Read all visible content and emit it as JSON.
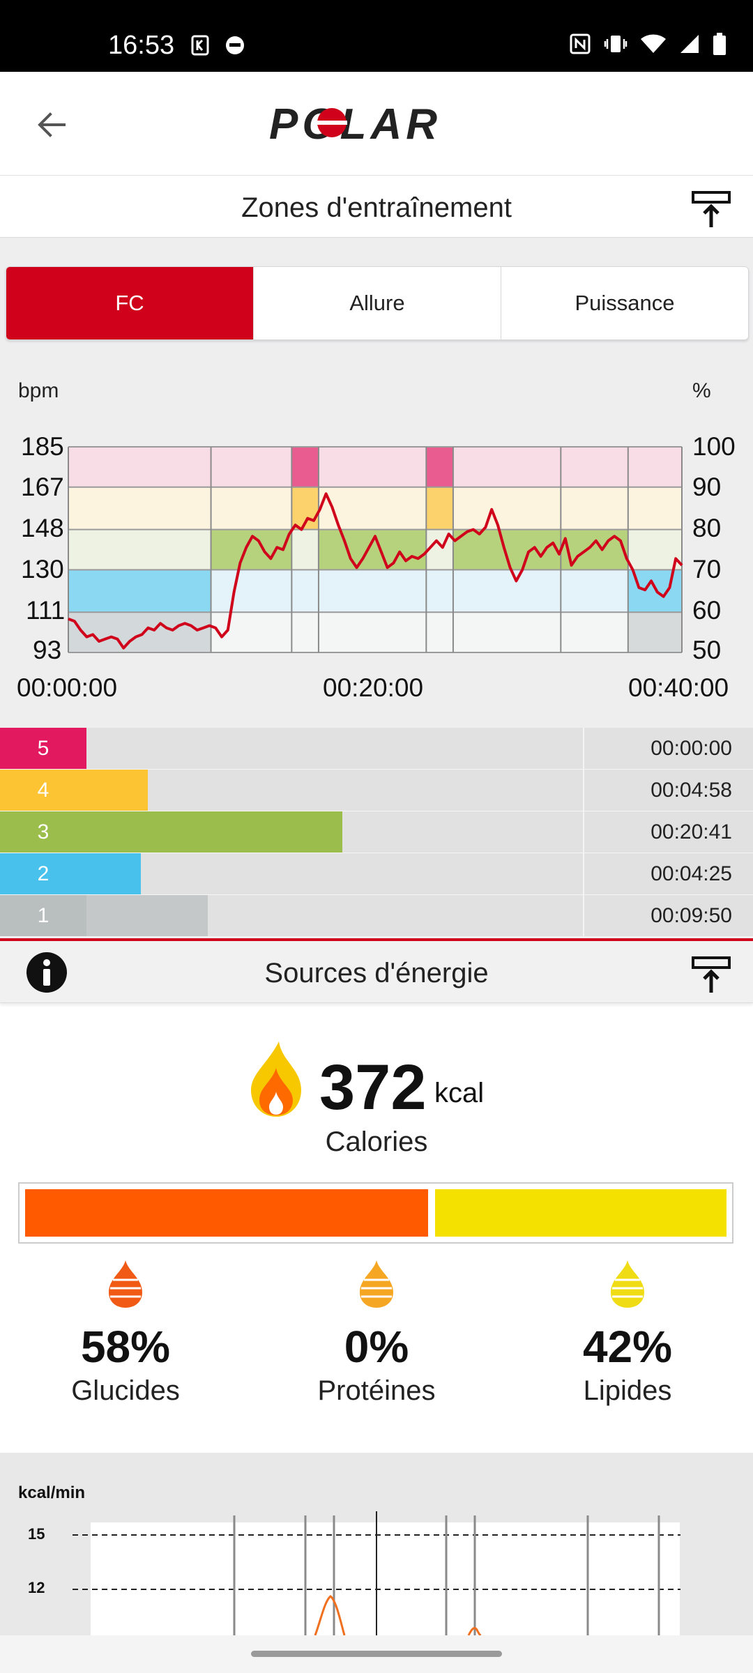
{
  "status_bar": {
    "time": "16:53"
  },
  "app_bar": {
    "logo_text": "POLAR"
  },
  "training_zones": {
    "title": "Zones d'entraînement",
    "tabs": [
      {
        "label": "FC",
        "active": true
      },
      {
        "label": "Allure",
        "active": false
      },
      {
        "label": "Puissance",
        "active": false
      }
    ],
    "unit_left": "bpm",
    "unit_right": "%",
    "y_left_ticks": [
      "185",
      "167",
      "148",
      "130",
      "111",
      "93"
    ],
    "y_right_ticks": [
      "100",
      "90",
      "80",
      "70",
      "60",
      "50"
    ],
    "x_ticks": [
      "00:00:00",
      "00:20:00",
      "00:40:00"
    ],
    "zones": [
      {
        "num": "5",
        "time": "00:00:00",
        "fraction": 0.0,
        "color": "#e3195f",
        "fill_color": "#e3195f"
      },
      {
        "num": "4",
        "time": "00:04:58",
        "fraction": 0.124,
        "color": "#fcc333",
        "fill_color": "#fcc333"
      },
      {
        "num": "3",
        "time": "00:20:41",
        "fraction": 0.516,
        "color": "#9bbd4c",
        "fill_color": "#9bbd4c"
      },
      {
        "num": "2",
        "time": "00:04:25",
        "fraction": 0.11,
        "color": "#48c2ed",
        "fill_color": "#48c2ed"
      },
      {
        "num": "1",
        "time": "00:09:50",
        "fraction": 0.245,
        "color": "#b9bebf",
        "fill_color": "#c4c8c9"
      }
    ]
  },
  "energy_sources": {
    "title": "Sources d'énergie",
    "calories_value": "372",
    "calories_unit": "kcal",
    "calories_label": "Calories",
    "bar": [
      {
        "name": "Glucides",
        "fraction": 0.58,
        "color": "#ff5a00"
      },
      {
        "name": "Lipides",
        "fraction": 0.42,
        "color": "#f5e100"
      }
    ],
    "sources": [
      {
        "pct": "58%",
        "name": "Glucides",
        "color": "#f05a14"
      },
      {
        "pct": "0%",
        "name": "Protéines",
        "color": "#f5a623"
      },
      {
        "pct": "42%",
        "name": "Lipides",
        "color": "#f0dc14"
      }
    ],
    "kcal_chart": {
      "unit": "kcal/min",
      "y_ticks": [
        "15",
        "12"
      ]
    }
  },
  "chart_data": [
    {
      "type": "line",
      "title": "",
      "ylabel": "bpm",
      "y2label": "%",
      "xlabel": "",
      "x_unit": "minutes",
      "ylim": [
        93,
        185
      ],
      "xlim": [
        0,
        40
      ],
      "x_ticks": [
        "00:00:00",
        "00:20:00",
        "00:40:00"
      ],
      "zone_bands_bpm": [
        [
          93,
          111
        ],
        [
          111,
          130
        ],
        [
          130,
          148
        ],
        [
          148,
          167
        ],
        [
          167,
          185
        ]
      ],
      "series": [
        {
          "x": [
            0,
            0.4,
            0.8,
            1.2,
            1.6,
            2.0,
            2.4,
            2.8,
            3.2,
            3.6,
            4.0,
            4.4,
            4.8,
            5.2,
            5.6,
            6.0,
            6.4,
            6.8,
            7.2,
            7.6,
            8.0,
            8.4,
            8.8,
            9.2,
            9.6,
            10.0,
            10.4,
            10.8,
            11.2,
            11.6,
            12.0,
            12.4,
            12.8,
            13.2,
            13.6,
            14.0,
            14.4,
            14.8,
            15.2,
            15.6,
            16.0,
            16.4,
            16.8,
            17.2,
            17.6,
            18.0,
            18.4,
            18.8,
            19.2,
            19.6,
            20.0,
            20.4,
            20.8,
            21.2,
            21.6,
            22.0,
            22.4,
            22.8,
            23.2,
            23.6,
            24.0,
            24.4,
            24.8,
            25.2,
            25.6,
            26.0,
            26.4,
            26.8,
            27.2,
            27.6,
            28.0,
            28.4,
            28.8,
            29.2,
            29.6,
            30.0,
            30.4,
            30.8,
            31.2,
            31.6,
            32.0,
            32.4,
            32.8,
            33.2,
            33.6,
            34.0,
            34.4,
            34.8,
            35.2,
            35.6,
            36.0,
            36.4,
            36.8,
            37.2,
            37.6,
            38.0,
            38.4,
            38.8,
            39.2,
            39.6,
            40.0
          ],
          "y": [
            108,
            107,
            103,
            100,
            101,
            98,
            99,
            100,
            99,
            95,
            98,
            100,
            101,
            104,
            103,
            106,
            104,
            103,
            105,
            106,
            105,
            103,
            104,
            105,
            104,
            100,
            103,
            120,
            133,
            140,
            145,
            143,
            138,
            135,
            140,
            139,
            146,
            150,
            148,
            153,
            152,
            157,
            164,
            158,
            150,
            143,
            135,
            131,
            135,
            140,
            145,
            138,
            131,
            133,
            138,
            134,
            136,
            135,
            137,
            140,
            143,
            140,
            146,
            143,
            145,
            147,
            148,
            146,
            149,
            157,
            150,
            140,
            131,
            125,
            130,
            138,
            140,
            136,
            140,
            142,
            137,
            144,
            132,
            136,
            138,
            140,
            143,
            139,
            143,
            145,
            143,
            135,
            130,
            122,
            121,
            125,
            120,
            118,
            122,
            135,
            132
          ]
        }
      ]
    },
    {
      "type": "bar",
      "title": "",
      "categories": [
        "5",
        "4",
        "3",
        "2",
        "1"
      ],
      "values": [
        0,
        298,
        1241,
        265,
        590
      ],
      "value_unit": "seconds",
      "value_labels": [
        "00:00:00",
        "00:04:58",
        "00:20:41",
        "00:04:25",
        "00:09:50"
      ]
    },
    {
      "type": "bar",
      "title": "",
      "categories": [
        "Glucides",
        "Protéines",
        "Lipides"
      ],
      "values": [
        58,
        0,
        42
      ],
      "value_unit": "%"
    }
  ]
}
